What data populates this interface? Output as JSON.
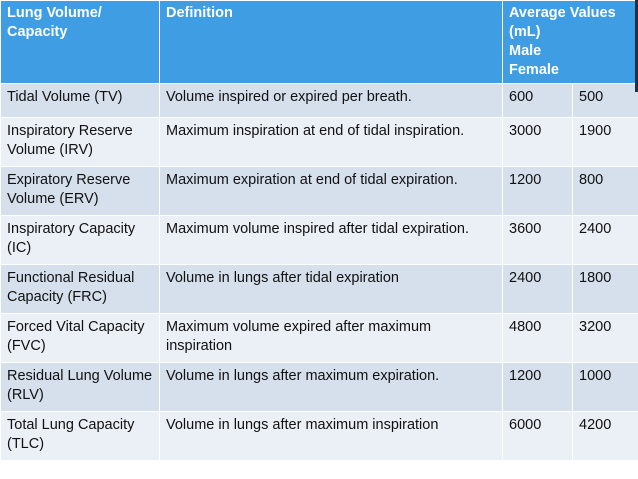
{
  "header": {
    "volume_line1": "Lung Volume/",
    "volume_line2": "Capacity",
    "definition": "Definition",
    "values_line1": "Average Values",
    "values_line2": "(mL)",
    "values_line3": "Male",
    "values_line4": "Female"
  },
  "rows": [
    {
      "name": "Tidal Volume (TV)",
      "definition": "Volume inspired or expired per breath.",
      "male": "600",
      "female": "500"
    },
    {
      "name": "Inspiratory Reserve Volume (IRV)",
      "definition": "Maximum inspiration at end of tidal inspiration.",
      "male": "3000",
      "female": "1900"
    },
    {
      "name": "Expiratory Reserve Volume (ERV)",
      "definition": "Maximum expiration at end of tidal expiration.",
      "male": "1200",
      "female": "800"
    },
    {
      "name": "Inspiratory Capacity (IC)",
      "definition": "Maximum volume inspired after tidal expiration.",
      "male": "3600",
      "female": "2400"
    },
    {
      "name": "Functional Residual Capacity (FRC)",
      "definition": "Volume in lungs after tidal expiration",
      "male": "2400",
      "female": "1800"
    },
    {
      "name": "Forced Vital Capacity (FVC)",
      "definition": "Maximum volume expired after maximum inspiration",
      "male": "4800",
      "female": "3200"
    },
    {
      "name": "Residual Lung Volume (RLV)",
      "definition": "Volume in lungs after maximum expiration.",
      "male": "1200",
      "female": "1000"
    },
    {
      "name": "Total Lung Capacity (TLC)",
      "definition": "Volume in lungs after maximum inspiration",
      "male": "6000",
      "female": "4200"
    }
  ],
  "colors": {
    "header_bg": "#3e9de3",
    "row_odd_bg": "#d6dfec",
    "row_even_bg": "#ebeff6",
    "border": "#ffffff"
  }
}
